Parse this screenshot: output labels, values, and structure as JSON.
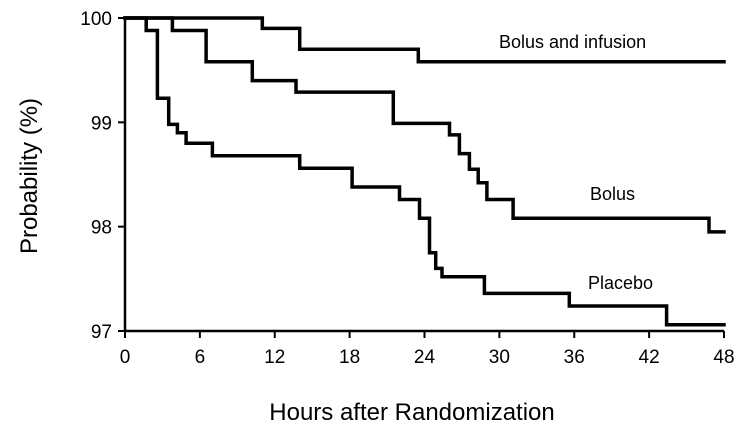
{
  "chart_data": {
    "type": "line",
    "title": "",
    "xlabel": "Hours after Randomization",
    "ylabel": "Probability (%)",
    "xlim": [
      0,
      48
    ],
    "ylim": [
      97,
      100
    ],
    "xticks": [
      "0",
      "6",
      "12",
      "18",
      "24",
      "30",
      "36",
      "42",
      "48"
    ],
    "yticks": [
      "97",
      "98",
      "99",
      "100"
    ],
    "grid": false,
    "legend": "none",
    "series": [
      {
        "name": "Bolus and infusion",
        "x": [
          0,
          11,
          11,
          14,
          14,
          23.5,
          23.5,
          48
        ],
        "y": [
          100,
          100,
          99.9,
          99.9,
          99.7,
          99.7,
          99.58,
          99.58
        ]
      },
      {
        "name": "Bolus",
        "x": [
          0,
          3.8,
          3.8,
          6.5,
          6.5,
          10.2,
          10.2,
          13.7,
          13.7,
          21.5,
          21.5,
          26,
          26,
          26.8,
          26.8,
          27.6,
          27.6,
          28.3,
          28.3,
          29,
          29,
          31.1,
          31.1,
          46.8,
          46.8,
          48
        ],
        "y": [
          100,
          100,
          99.88,
          99.88,
          99.58,
          99.58,
          99.4,
          99.4,
          99.29,
          99.29,
          98.99,
          98.99,
          98.88,
          98.88,
          98.7,
          98.7,
          98.55,
          98.55,
          98.42,
          98.42,
          98.26,
          98.26,
          98.08,
          98.08,
          97.95,
          97.95
        ]
      },
      {
        "name": "Placebo",
        "x": [
          0,
          1.7,
          1.7,
          2.6,
          2.6,
          3.5,
          3.5,
          4.2,
          4.2,
          4.9,
          4.9,
          7,
          7,
          14,
          14,
          18.2,
          18.2,
          22,
          22,
          23.6,
          23.6,
          24.4,
          24.4,
          24.9,
          24.9,
          25.4,
          25.4,
          28.8,
          28.8,
          35.6,
          35.6,
          43.4,
          43.4,
          48
        ],
        "y": [
          100,
          100,
          99.88,
          99.88,
          99.23,
          99.23,
          98.98,
          98.98,
          98.9,
          98.9,
          98.8,
          98.8,
          98.68,
          98.68,
          98.56,
          98.56,
          98.38,
          98.38,
          98.26,
          98.26,
          98.08,
          98.08,
          97.75,
          97.75,
          97.6,
          97.6,
          97.52,
          97.52,
          97.36,
          97.36,
          97.24,
          97.24,
          97.06,
          97.06
        ]
      }
    ]
  },
  "labels": {
    "bolus_and_infusion": "Bolus and infusion",
    "bolus": "Bolus",
    "placebo": "Placebo"
  }
}
